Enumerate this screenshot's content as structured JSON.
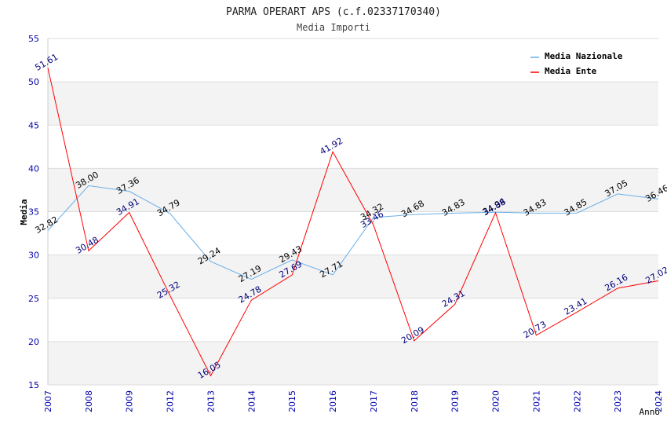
{
  "chart_data": {
    "type": "line",
    "title": "PARMA OPERART APS (c.f.02337170340)",
    "subtitle": "Media Importi",
    "xlabel": "Anno",
    "ylabel": "Media",
    "ylim": [
      15,
      55
    ],
    "yticks": [
      "15",
      "20",
      "25",
      "30",
      "35",
      "40",
      "45",
      "50",
      "55"
    ],
    "categories": [
      "2007",
      "2008",
      "2009",
      "2012",
      "2013",
      "2014",
      "2015",
      "2016",
      "2017",
      "2018",
      "2019",
      "2020",
      "2021",
      "2022",
      "2023",
      "2024"
    ],
    "grid": "horizontal bands",
    "legend_position": "top-right",
    "series": [
      {
        "name": "Media Nazionale",
        "color": "#6aaee6",
        "label_color": "#000000",
        "values": [
          32.82,
          38.0,
          37.36,
          34.79,
          29.24,
          27.19,
          29.43,
          27.71,
          34.32,
          34.68,
          34.83,
          34.94,
          34.83,
          34.85,
          37.05,
          36.46
        ],
        "labels": [
          "32.82",
          "38.00",
          "37.36",
          "34.79",
          "29.24",
          "27.19",
          "29.43",
          "27.71",
          "34.32",
          "34.68",
          "34.83",
          "34.94",
          "34.83",
          "34.85",
          "37.05",
          "36.46"
        ]
      },
      {
        "name": "Media Ente",
        "color": "#ff0000",
        "label_color": "#00007a",
        "values": [
          51.61,
          30.48,
          34.91,
          25.32,
          16.05,
          24.78,
          27.69,
          41.92,
          33.46,
          20.09,
          24.31,
          34.88,
          20.73,
          23.41,
          26.16,
          27.02
        ],
        "labels": [
          "51.61",
          "30.48",
          "34.91",
          "25.32",
          "16.05",
          "24.78",
          "27.69",
          "41.92",
          "33.46",
          "20.09",
          "24.31",
          "34.88",
          "20.73",
          "23.41",
          "26.16",
          "27.02"
        ]
      }
    ]
  }
}
